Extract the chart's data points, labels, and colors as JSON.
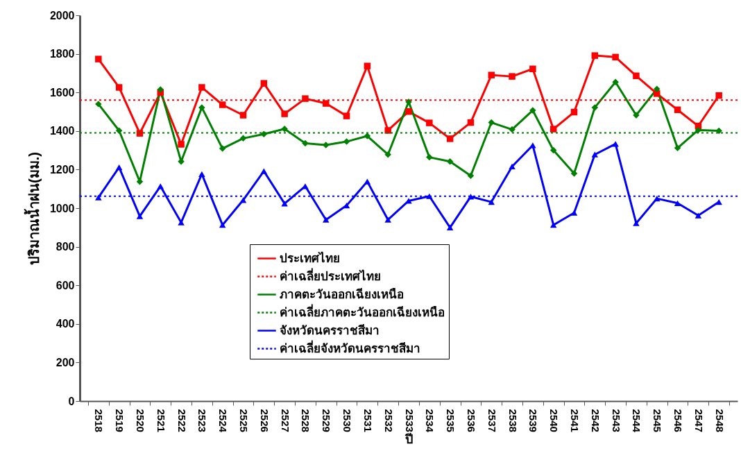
{
  "chart_data": {
    "type": "line",
    "xlabel": "ปี",
    "ylabel": "ปริมาณน้ำฝน(มม.)",
    "categories": [
      "2518",
      "2519",
      "2520",
      "2521",
      "2522",
      "2523",
      "2524",
      "2525",
      "2526",
      "2527",
      "2528",
      "2529",
      "2530",
      "2531",
      "2532",
      "2533",
      "2534",
      "2535",
      "2536",
      "2537",
      "2538",
      "2539",
      "2540",
      "2541",
      "2542",
      "2543",
      "2544",
      "2545",
      "2546",
      "2547",
      "2548"
    ],
    "series": [
      {
        "name": "ประเทศไทย",
        "color": "#ff0000",
        "marker": "square",
        "values": [
          1773,
          1626,
          1388,
          1600,
          1331,
          1626,
          1536,
          1482,
          1647,
          1489,
          1568,
          1543,
          1478,
          1737,
          1403,
          1501,
          1442,
          1360,
          1444,
          1690,
          1683,
          1722,
          1410,
          1498,
          1791,
          1783,
          1686,
          1594,
          1510,
          1426,
          1584
        ]
      },
      {
        "name": "ภาคตะวันออกเฉียงเหนือ",
        "color": "#008000",
        "marker": "diamond",
        "values": [
          1540,
          1402,
          1138,
          1615,
          1242,
          1522,
          1309,
          1362,
          1384,
          1411,
          1336,
          1327,
          1345,
          1374,
          1278,
          1551,
          1264,
          1242,
          1168,
          1444,
          1408,
          1507,
          1300,
          1180,
          1522,
          1654,
          1482,
          1618,
          1312,
          1405,
          1401
        ]
      },
      {
        "name": "จังหวัดนครราชสีมา",
        "color": "#0000ff",
        "marker": "triangle",
        "values": [
          1055,
          1212,
          958,
          1114,
          926,
          1177,
          913,
          1042,
          1192,
          1024,
          1114,
          940,
          1014,
          1138,
          940,
          1038,
          1062,
          900,
          1060,
          1032,
          1216,
          1326,
          913,
          976,
          1278,
          1333,
          922,
          1050,
          1026,
          962,
          1032
        ]
      }
    ],
    "ref_lines": [
      {
        "axis": "y",
        "value": 1560,
        "label": "ค่าเฉลี่ยประเทศไทย",
        "color": "#ff0000",
        "line_style": "dotted"
      },
      {
        "axis": "y",
        "value": 1390,
        "label": "ค่าเฉลี่ยภาคตะวันออกเฉียงเหนือ",
        "color": "#008000",
        "line_style": "dotted"
      },
      {
        "axis": "y",
        "value": 1062,
        "label": "ค่าเฉลี่ยจังหวัดนครราชสีมา",
        "color": "#0000ff",
        "line_style": "dotted"
      }
    ],
    "ylim": [
      0,
      2000
    ],
    "yticks": [
      0,
      200,
      400,
      600,
      800,
      1000,
      1200,
      1400,
      1600,
      1800,
      2000
    ],
    "grid": false,
    "legend": "bottom"
  }
}
